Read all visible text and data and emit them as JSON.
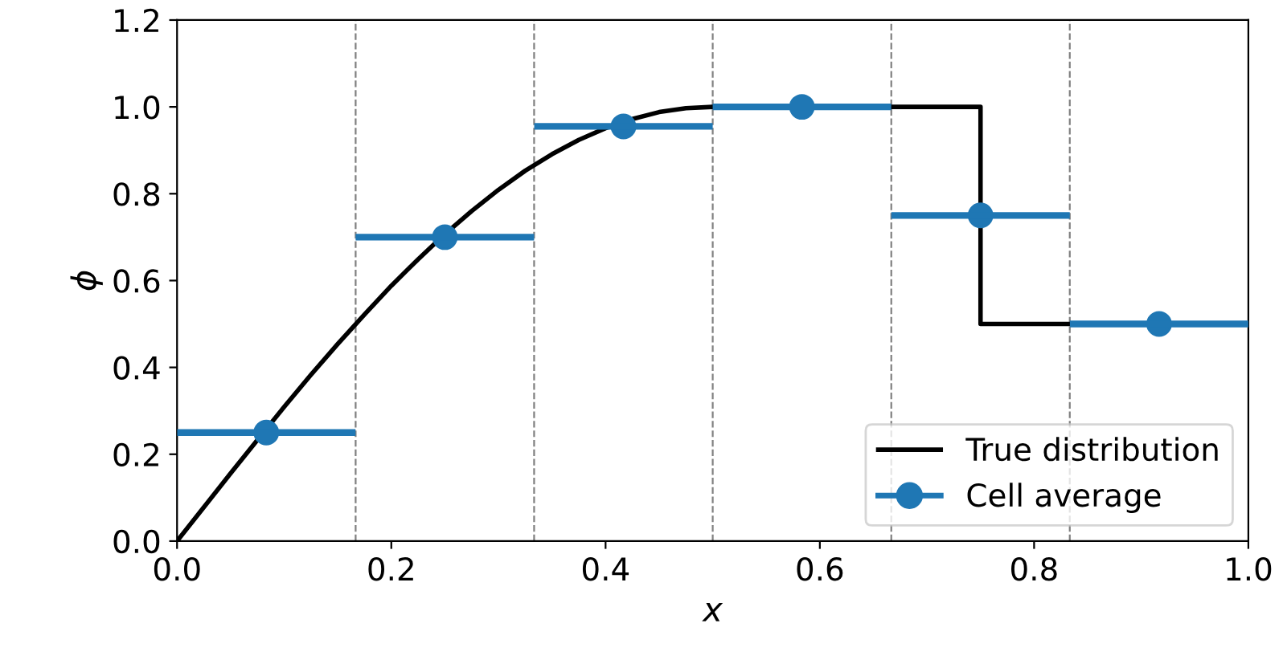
{
  "chart_data": {
    "type": "line",
    "xlabel": "x",
    "ylabel": "ϕ",
    "xlim": [
      0,
      1
    ],
    "ylim": [
      0,
      1.2
    ],
    "xticks": [
      {
        "value": 0,
        "label": "0.0"
      },
      {
        "value": 0.2,
        "label": "0.2"
      },
      {
        "value": 0.4,
        "label": "0.4"
      },
      {
        "value": 0.6,
        "label": "0.6"
      },
      {
        "value": 0.8,
        "label": "0.8"
      },
      {
        "value": 1,
        "label": "1.0"
      }
    ],
    "yticks": [
      {
        "value": 0,
        "label": "0.0"
      },
      {
        "value": 0.2,
        "label": "0.2"
      },
      {
        "value": 0.4,
        "label": "0.4"
      },
      {
        "value": 0.6,
        "label": "0.6"
      },
      {
        "value": 0.8,
        "label": "0.8"
      },
      {
        "value": 1,
        "label": "1.0"
      },
      {
        "value": 1.2,
        "label": "1.2"
      }
    ],
    "series": [
      {
        "name": "True distribution",
        "color": "#000000",
        "marker": "none",
        "x": [
          0,
          0.025,
          0.05,
          0.075,
          0.1,
          0.125,
          0.15,
          0.175,
          0.2,
          0.225,
          0.25,
          0.275,
          0.3,
          0.325,
          0.35,
          0.375,
          0.4,
          0.425,
          0.45,
          0.475,
          0.5,
          0.75,
          0.75,
          1.0
        ],
        "values": [
          0,
          0.078,
          0.156,
          0.233,
          0.309,
          0.383,
          0.454,
          0.522,
          0.588,
          0.649,
          0.707,
          0.76,
          0.809,
          0.853,
          0.891,
          0.924,
          0.951,
          0.972,
          0.988,
          0.997,
          1.0,
          1.0,
          0.5,
          0.5
        ]
      },
      {
        "name": "Cell average",
        "type": "scatter",
        "color": "#1f77b4",
        "marker": "circle",
        "x": [
          0.0833,
          0.25,
          0.4167,
          0.5833,
          0.75,
          0.9167
        ],
        "values": [
          0.25,
          0.7,
          0.955,
          1.0,
          0.75,
          0.5
        ],
        "xerrors": [
          0.0833,
          0.0833,
          0.0833,
          0.0833,
          0.0833,
          0.0833
        ]
      }
    ],
    "ref_lines": [
      {
        "axis": "x",
        "value": 0.1667,
        "color": "#808080",
        "line_style": "dashed"
      },
      {
        "axis": "x",
        "value": 0.3333,
        "color": "#808080",
        "line_style": "dashed"
      },
      {
        "axis": "x",
        "value": 0.5,
        "color": "#808080",
        "line_style": "dashed"
      },
      {
        "axis": "x",
        "value": 0.6667,
        "color": "#808080",
        "line_style": "dashed"
      },
      {
        "axis": "x",
        "value": 0.8333,
        "color": "#808080",
        "line_style": "dashed"
      }
    ],
    "grid": false,
    "legend": "bottom right"
  }
}
